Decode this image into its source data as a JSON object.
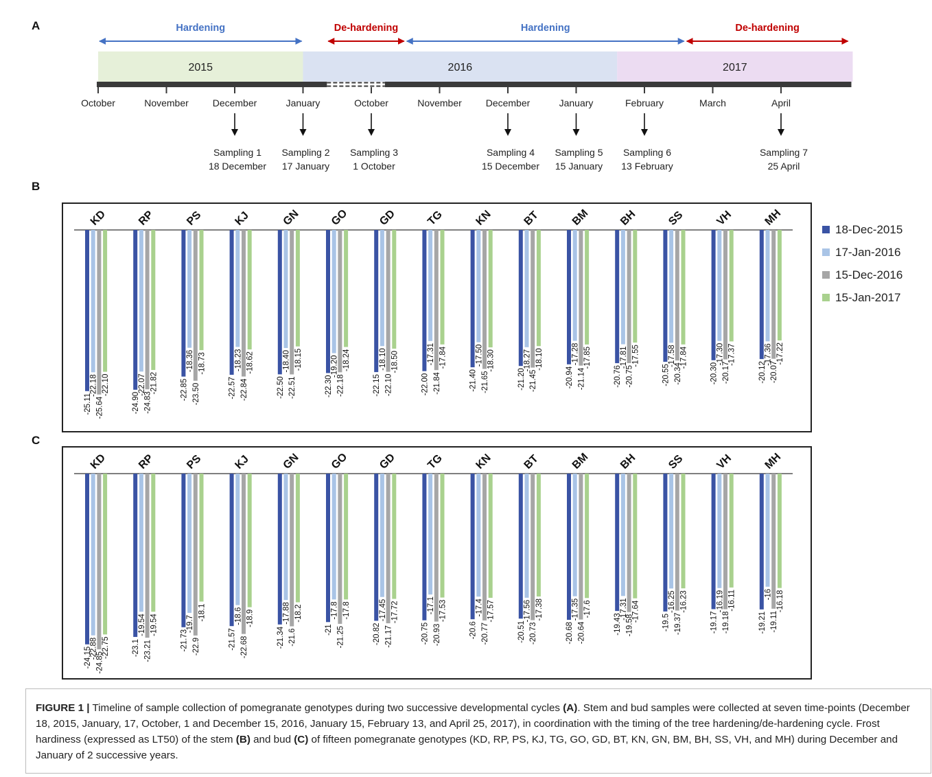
{
  "panels": {
    "a": "A",
    "b": "B",
    "c": "C"
  },
  "timeline": {
    "phases": [
      {
        "label": "Hardening",
        "color": "#4472c4",
        "from": 0,
        "to": 3
      },
      {
        "label": "De-hardening",
        "color": "#c00000",
        "from": 3.35,
        "to": 4.5
      },
      {
        "label": "Hardening",
        "color": "#4472c4",
        "from": 4.5,
        "to": 8.6
      },
      {
        "label": "De-hardening",
        "color": "#c00000",
        "from": 8.6,
        "to": 11
      }
    ],
    "years": [
      {
        "label": "2015",
        "color": "#e6f0d9",
        "from": 0,
        "to": 3
      },
      {
        "label": "2016",
        "color": "#dae2f2",
        "from": 3,
        "to": 7.6
      },
      {
        "label": "2017",
        "color": "#ecdcf2",
        "from": 7.6,
        "to": 11
      }
    ],
    "months": [
      "October",
      "November",
      "December",
      "January",
      "October",
      "November",
      "December",
      "January",
      "February",
      "March",
      "April"
    ],
    "samplings": [
      {
        "month_index": 2,
        "name": "Sampling 1",
        "date": "18 December"
      },
      {
        "month_index": 3,
        "name": "Sampling 2",
        "date": "17 January"
      },
      {
        "month_index": 4,
        "name": "Sampling 3",
        "date": "1 October"
      },
      {
        "month_index": 6,
        "name": "Sampling 4",
        "date": "15 December"
      },
      {
        "month_index": 7,
        "name": "Sampling 5",
        "date": "15 January"
      },
      {
        "month_index": 8,
        "name": "Sampling 6",
        "date": "13 February"
      },
      {
        "month_index": 10,
        "name": "Sampling 7",
        "date": "25 April"
      }
    ]
  },
  "legend": [
    {
      "label": "18-Dec-2015",
      "color": "#3a53a4"
    },
    {
      "label": "17-Jan-2016",
      "color": "#a9c4e6"
    },
    {
      "label": "15-Dec-2016",
      "color": "#a6a6a6"
    },
    {
      "label": "15-Jan-2017",
      "color": "#a9d18e"
    }
  ],
  "chart_data": [
    {
      "type": "bar",
      "panel": "B",
      "categories": [
        "KD",
        "RP",
        "PS",
        "KJ",
        "GN",
        "GO",
        "GD",
        "TG",
        "KN",
        "BT",
        "BM",
        "BH",
        "SS",
        "VH",
        "MH"
      ],
      "series": [
        {
          "name": "18-Dec-2015",
          "values": [
            -25.11,
            -24.9,
            -22.85,
            -22.57,
            -22.5,
            -22.3,
            -22.15,
            -22.0,
            -21.4,
            -21.2,
            -20.94,
            -20.76,
            -20.55,
            -20.3,
            -20.12
          ],
          "labels": [
            "-25.11",
            "-24.90",
            "-22.85",
            "-22.57",
            "-22.50",
            "-22.30",
            "-22.15",
            "-22.00",
            "-21.40",
            "-21.20",
            "-20.94",
            "-20.76",
            "-20.55",
            "-20.30",
            "-20.12"
          ]
        },
        {
          "name": "17-Jan-2016",
          "values": [
            -22.18,
            -22.07,
            -18.36,
            -18.23,
            -18.4,
            -19.2,
            -18.1,
            -17.31,
            -17.5,
            -18.27,
            -17.28,
            -17.81,
            -17.58,
            -17.3,
            -17.36
          ],
          "labels": [
            "-22.18",
            "-22.07",
            "-18.36",
            "-18.23",
            "-18.40",
            "-19.20",
            "-18.10",
            "-17.31",
            "-17.50",
            "-18.27",
            "-17.28",
            "-17.81",
            "-17.58",
            "-17.30",
            "-17.36"
          ]
        },
        {
          "name": "15-Dec-2016",
          "values": [
            -25.64,
            -24.83,
            -23.5,
            -22.84,
            -22.51,
            -22.18,
            -22.1,
            -21.84,
            -21.65,
            -21.45,
            -21.14,
            -20.75,
            -20.34,
            -20.17,
            -20.07
          ],
          "labels": [
            "-25.64",
            "-24.83",
            "-23.50",
            "-22.84",
            "-22.51",
            "-22.18",
            "-22.10",
            "-21.84",
            "-21.65",
            "-21.45",
            "-21.14",
            "-20.75",
            "-20.34",
            "-20.17",
            "-20.07"
          ]
        },
        {
          "name": "15-Jan-2017",
          "values": [
            -22.1,
            -21.82,
            -18.73,
            -18.62,
            -18.15,
            -18.24,
            -18.5,
            -17.84,
            -18.3,
            -18.1,
            -17.85,
            -17.55,
            -17.84,
            -17.37,
            -17.22
          ],
          "labels": [
            "-22.10",
            "-21.82",
            "-18.73",
            "-18.62",
            "-18.15",
            "-18.24",
            "-18.50",
            "-17.84",
            "-18.30",
            "-18.10",
            "-17.85",
            "-17.55",
            "-17.84",
            "-17.37",
            "-17.22"
          ]
        }
      ],
      "ylim": [
        -30,
        0
      ]
    },
    {
      "type": "bar",
      "panel": "C",
      "categories": [
        "KD",
        "RP",
        "PS",
        "KJ",
        "GN",
        "GO",
        "GD",
        "TG",
        "KN",
        "BT",
        "BM",
        "BH",
        "SS",
        "VH",
        "MH"
      ],
      "series": [
        {
          "name": "18-Dec-2015",
          "values": [
            -24.15,
            -23.1,
            -21.73,
            -21.57,
            -21.34,
            -21,
            -20.82,
            -20.75,
            -20.6,
            -20.51,
            -20.68,
            -19.43,
            -19.5,
            -19.17,
            -19.21
          ],
          "labels": [
            "-24.15",
            "-23.1",
            "-21.73",
            "-21.57",
            "-21.34",
            "-21",
            "-20.82",
            "-20.75",
            "-20.6",
            "-20.51",
            "-20.68",
            "-19.43",
            "-19.5",
            "-19.17",
            "-19.21"
          ]
        },
        {
          "name": "17-Jan-2016",
          "values": [
            -22.88,
            -19.54,
            -19.7,
            -18.6,
            -17.88,
            -17.8,
            -17.45,
            -17.1,
            -17.4,
            -17.56,
            -17.35,
            -17.31,
            -16.25,
            -16.19,
            -16
          ],
          "labels": [
            "-22.88",
            "-19.54",
            "-19.7",
            "-18.6",
            "-17.88",
            "-17.8",
            "-17.45",
            "-17.1",
            "-17.4",
            "-17.56",
            "-17.35",
            "-17.31",
            "-16.25",
            "-16.19",
            "-16"
          ]
        },
        {
          "name": "15-Dec-2016",
          "values": [
            -24.85,
            -23.21,
            -22.9,
            -22.68,
            -21.6,
            -21.25,
            -21.17,
            -20.93,
            -20.77,
            -20.73,
            -20.64,
            -19.58,
            -19.37,
            -19.18,
            -19.11
          ],
          "labels": [
            "-24.85",
            "-23.21",
            "-22.9",
            "-22.68",
            "-21.6",
            "-21.25",
            "-21.17",
            "-20.93",
            "-20.77",
            "-20.73",
            "-20.64",
            "-19.58",
            "-19.37",
            "-19.18",
            "-19.11"
          ]
        },
        {
          "name": "15-Jan-2017",
          "values": [
            -22.75,
            -19.54,
            -18.1,
            -18.9,
            -18.2,
            -17.8,
            -17.72,
            -17.53,
            -17.57,
            -17.38,
            -17.6,
            -17.64,
            -16.23,
            -16.11,
            -16.18
          ],
          "labels": [
            "-22.75",
            "-19.54",
            "-18.1",
            "-18.9",
            "-18.2",
            "-17.8",
            "-17.72",
            "-17.53",
            "-17.57",
            "-17.38",
            "-17.6",
            "-17.64",
            "-16.23",
            "-16.11",
            "-16.18"
          ]
        }
      ],
      "ylim": [
        -30,
        0
      ]
    }
  ],
  "caption": {
    "fig_label": "FIGURE 1 |",
    "parts": [
      " Timeline of sample collection of pomegranate genotypes during two successive developmental cycles ",
      "(A)",
      ". Stem and bud samples were collected at seven time-points (December 18, 2015, January, 17, October, 1 and December 15, 2016, January 15, February 13, and April 25, 2017), in coordination with the timing of the tree hardening/de-hardening cycle. Frost hardiness (expressed as LT50) of the stem ",
      "(B)",
      " and bud ",
      "(C)",
      " of fifteen pomegranate genotypes (KD, RP, PS, KJ, TG, GO, GD, BT, KN, GN, BM, BH, SS, VH, and MH) during December and January of 2 successive years."
    ]
  }
}
